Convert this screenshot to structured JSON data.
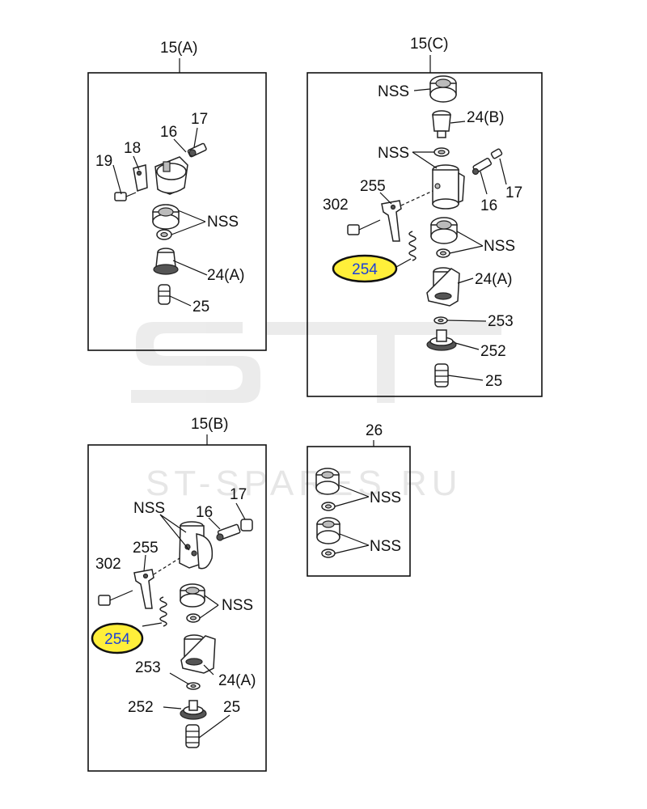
{
  "watermark": {
    "logo_text": "ST",
    "site_text": "ST-SPARES.RU"
  },
  "panels": {
    "A": {
      "title": "15(A)",
      "labels": {
        "p17": "17",
        "p16": "16",
        "p18": "18",
        "p19": "19",
        "nss": "NSS",
        "p24": "24(A)",
        "p25": "25"
      }
    },
    "C": {
      "title": "15(C)",
      "labels": {
        "nss_top": "NSS",
        "p24b": "24(B)",
        "nss_mid": "NSS",
        "p255": "255",
        "p302": "302",
        "p16": "16",
        "p17": "17",
        "nss_low": "NSS",
        "p254": "254",
        "p24a": "24(A)",
        "p253": "253",
        "p252": "252",
        "p25": "25"
      }
    },
    "B": {
      "title": "15(B)",
      "labels": {
        "nss_top": "NSS",
        "p17": "17",
        "p16": "16",
        "p255": "255",
        "p302": "302",
        "nss_low": "NSS",
        "p254": "254",
        "p253": "253",
        "p24a": "24(A)",
        "p252": "252",
        "p25": "25"
      }
    },
    "D": {
      "title": "26",
      "labels": {
        "nss1": "NSS",
        "nss2": "NSS"
      }
    }
  },
  "highlight": {
    "color": "#ffef3a",
    "text_color": "#1b3fd9",
    "part": "254"
  }
}
